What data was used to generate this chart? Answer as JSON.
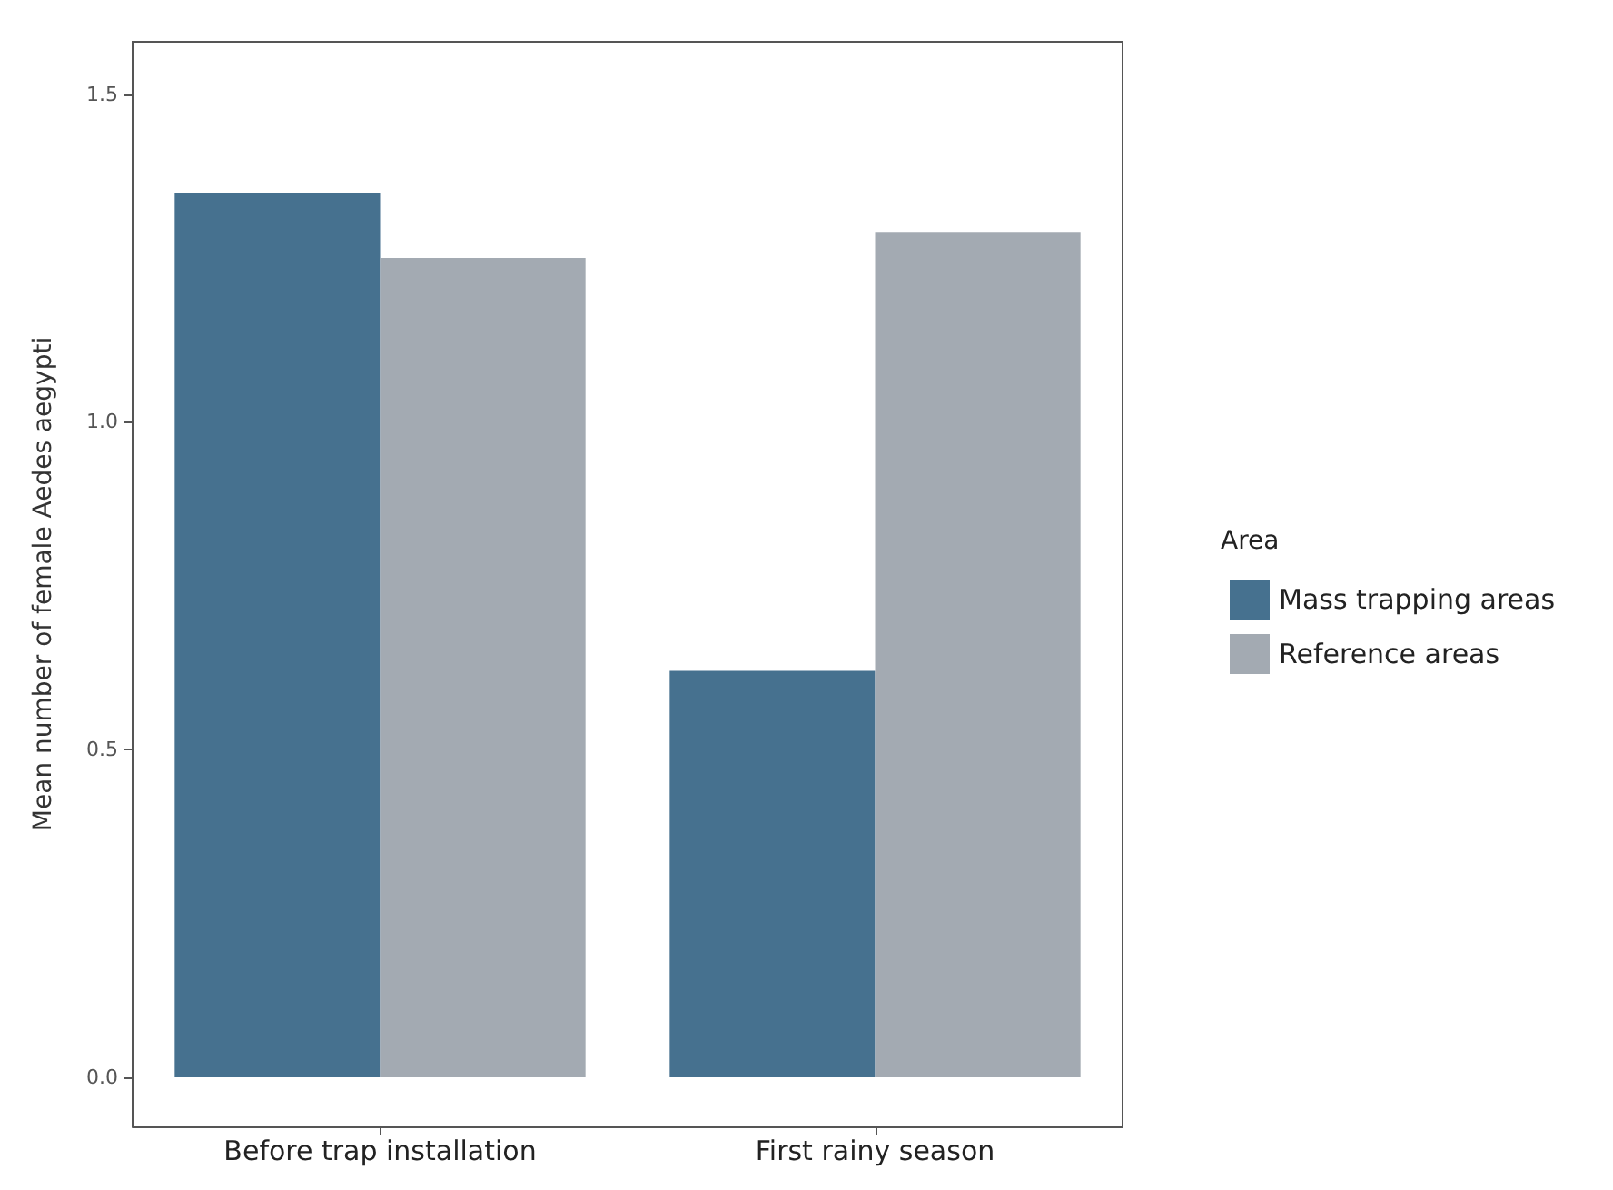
{
  "chart_data": {
    "type": "bar",
    "ylabel": "Mean number of female Aedes aegypti",
    "legend_title": "Area",
    "categories": [
      "Before trap installation",
      "First rainy season"
    ],
    "series": [
      {
        "name": "Mass trapping areas",
        "color": "#46718f",
        "values": [
          1.35,
          0.62
        ]
      },
      {
        "name": "Reference areas",
        "color": "#a3aab2",
        "values": [
          1.25,
          1.29
        ]
      }
    ],
    "ylim": [
      -0.075,
      1.58
    ],
    "yticks": [
      {
        "value": 0,
        "label": "0.0"
      },
      {
        "value": 0.5,
        "label": "0.5"
      },
      {
        "value": 1,
        "label": "1.0"
      },
      {
        "value": 1.5,
        "label": "1.5"
      }
    ],
    "grid": false,
    "legend": "right"
  }
}
